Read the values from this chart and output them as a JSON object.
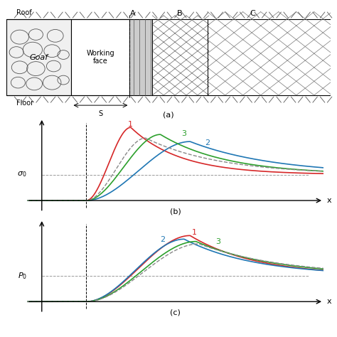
{
  "fig_width": 4.74,
  "fig_height": 4.74,
  "bg_color": "#ffffff",
  "panel_a_label": "(a)",
  "panel_b_label": "(b)",
  "panel_c_label": "(c)",
  "roof_label": "Roof",
  "floor_label": "Floor",
  "goaf_label": "Goaf",
  "working_face_label": "Working\nface",
  "zone_labels": [
    "A",
    "B",
    "C"
  ],
  "sigma0_label": "σ0",
  "P0_label": "P₀",
  "x_label": "x",
  "S_label": "S",
  "colors": {
    "curve1": "#d62728",
    "curve2": "#1f77b4",
    "curve3": "#2ca02c",
    "dashed": "#aaaaaa",
    "ref_line": "#c8a000",
    "axes": "#333333",
    "hatch": "#888888"
  }
}
